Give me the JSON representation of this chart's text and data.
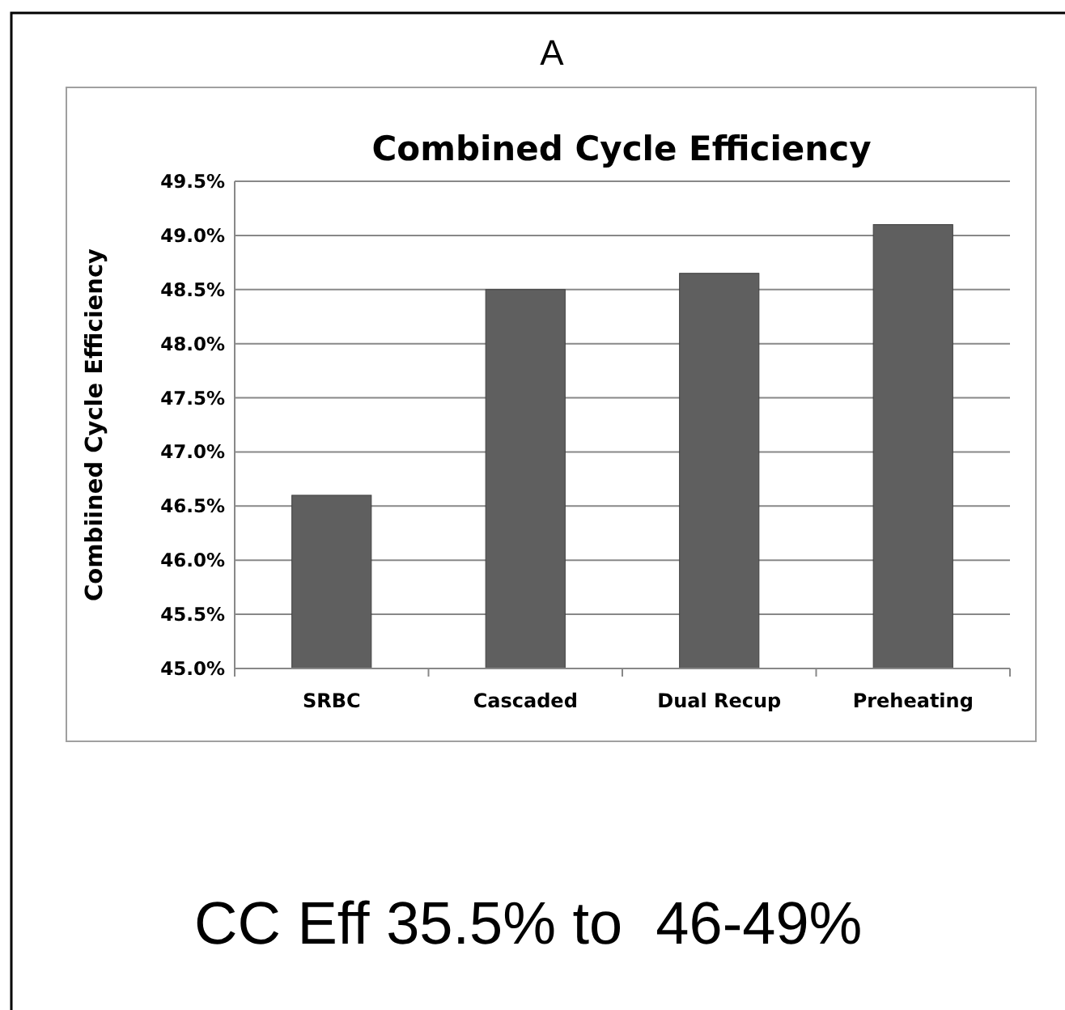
{
  "chart_data": {
    "type": "bar",
    "title": "Combined Cycle Efficiency",
    "ylabel": "Combiined Cycle Efficiency",
    "annotations": [
      "A",
      "CC Eff 35.5% to  46-49%"
    ],
    "categories": [
      "SRBC",
      "Cascaded",
      "Dual Recup",
      "Preheating"
    ],
    "values": [
      46.6,
      48.5,
      48.65,
      49.1
    ],
    "color": "#5f5f5f",
    "ylim": [
      45,
      49.5
    ],
    "yticks": [
      {
        "value": 45,
        "label": "45.0%"
      },
      {
        "value": 45.5,
        "label": "45.5%"
      },
      {
        "value": 46,
        "label": "46.0%"
      },
      {
        "value": 46.5,
        "label": "46.5%"
      },
      {
        "value": 47,
        "label": "47.0%"
      },
      {
        "value": 47.5,
        "label": "47.5%"
      },
      {
        "value": 48,
        "label": "48.0%"
      },
      {
        "value": 48.5,
        "label": "48.5%"
      },
      {
        "value": 49,
        "label": "49.0%"
      },
      {
        "value": 49.5,
        "label": "49.5%"
      }
    ],
    "grid": "y"
  }
}
